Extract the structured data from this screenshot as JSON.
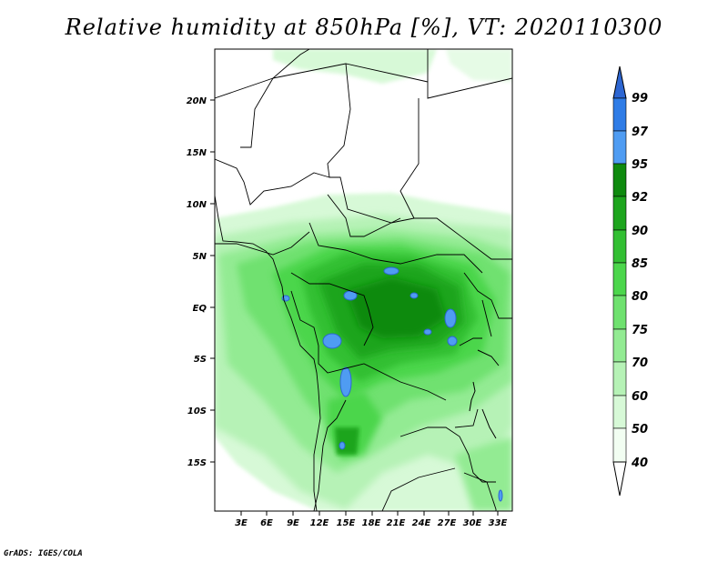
{
  "map": {
    "title": "Relative humidity at 850hPa [%], VT: 2020110300",
    "credit": "GrADS: IGES/COLA",
    "lat_ticks": [
      "20N",
      "15N",
      "10N",
      "5N",
      "EQ",
      "5S",
      "10S",
      "15S"
    ],
    "lon_ticks": [
      "3E",
      "6E",
      "9E",
      "12E",
      "15E",
      "18E",
      "21E",
      "24E",
      "27E",
      "30E",
      "33E"
    ],
    "extent": {
      "lon": [
        0,
        34
      ],
      "lat": [
        -20,
        25
      ]
    }
  },
  "colorbar": {
    "labels": [
      "99",
      "97",
      "95",
      "92",
      "90",
      "85",
      "80",
      "75",
      "70",
      "60",
      "50",
      "40"
    ],
    "colors": [
      "#2d66d2",
      "#2f7ce6",
      "#4f9cf2",
      "#0f8a0f",
      "#1ea51e",
      "#33bf33",
      "#4cd64c",
      "#6fe16f",
      "#93eb93",
      "#b6f2b6",
      "#d7f9d7",
      "#f2fef2"
    ]
  }
}
